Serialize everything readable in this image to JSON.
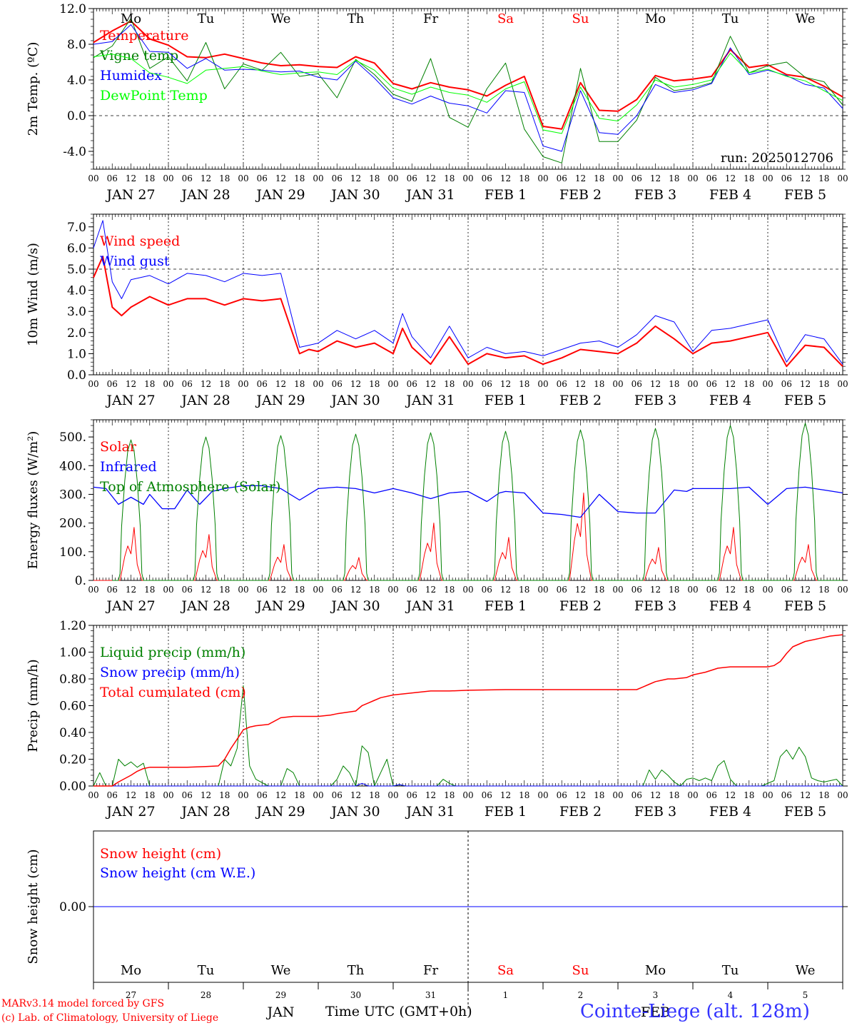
{
  "days": [
    "JAN 27",
    "JAN 28",
    "JAN 29",
    "JAN 30",
    "JAN 31",
    "FEB  1",
    "FEB  2",
    "FEB  3",
    "FEB  4",
    "FEB  5"
  ],
  "weekdays": [
    "Mo",
    "Tu",
    "We",
    "Th",
    "Fr",
    "Sa",
    "Su",
    "Mo",
    "Tu",
    "We"
  ],
  "weekday_colors": [
    "#000000",
    "#000000",
    "#000000",
    "#000000",
    "#000000",
    "#ff0000",
    "#ff0000",
    "#000000",
    "#000000",
    "#000000"
  ],
  "hour_labels": [
    "00",
    "06",
    "12",
    "18"
  ],
  "end_hour_label": "00",
  "bottom_day_numbers": [
    "27",
    "28",
    "29",
    "30",
    "31",
    "1",
    "2",
    "3",
    "4",
    "5"
  ],
  "x_month_left": "JAN",
  "x_month_right": "FEB",
  "x_axis_title": "Time UTC (GMT+0h)",
  "footer": {
    "model": "MARv3.14 model forced by GFS",
    "copyright": "(c) Lab. of Climatology, University of Liege",
    "station": "Cointe-Liege (alt. 128m)"
  },
  "chart_data": [
    {
      "type": "line",
      "id": "temp",
      "ylabel": "2m Temp. (ºC)",
      "ylim": [
        -6,
        12
      ],
      "yticks": [
        -4,
        0,
        4,
        8,
        12
      ],
      "ytick_labels": [
        "-4.0",
        "0.0",
        "4.0",
        "8.0",
        "12.0"
      ],
      "ref_line": 0,
      "annotation": "run: 2025012706",
      "x_hours": [
        0,
        6,
        12,
        18,
        24,
        30,
        36,
        42,
        48,
        54,
        60,
        66,
        72,
        78,
        84,
        90,
        96,
        102,
        108,
        114,
        120,
        126,
        132,
        138,
        144,
        150,
        156,
        162,
        168,
        174,
        180,
        186,
        192,
        198,
        204,
        210,
        216,
        222,
        228,
        234,
        240
      ],
      "series": [
        {
          "name": "Temperature",
          "color": "#ff0000",
          "width": 2,
          "values": [
            8.2,
            9.5,
            10.6,
            8.6,
            7.9,
            6.6,
            6.5,
            6.9,
            6.4,
            5.9,
            5.6,
            5.7,
            5.5,
            5.4,
            6.6,
            5.9,
            3.6,
            3.0,
            3.7,
            3.2,
            2.9,
            2.2,
            3.4,
            4.4,
            -1.2,
            -1.5,
            3.7,
            0.6,
            0.5,
            1.8,
            4.5,
            3.9,
            4.1,
            4.4,
            7.4,
            5.4,
            5.7,
            4.6,
            4.3,
            3.3,
            2.1
          ]
        },
        {
          "name": "Vigne temp",
          "color": "#008000",
          "width": 1,
          "values": [
            6.5,
            7.8,
            10.9,
            5.3,
            6.6,
            3.9,
            8.2,
            3.0,
            5.8,
            5.1,
            7.1,
            4.4,
            4.7,
            2.0,
            6.3,
            4.6,
            2.4,
            1.6,
            6.4,
            -0.2,
            -1.3,
            3.0,
            5.9,
            -1.5,
            -4.6,
            -5.3,
            5.3,
            -2.9,
            -2.9,
            -0.5,
            4.3,
            2.8,
            3.1,
            3.7,
            8.9,
            4.8,
            5.6,
            6.0,
            4.3,
            3.8,
            1.2
          ]
        },
        {
          "name": "Humidex",
          "color": "#0000ff",
          "width": 1,
          "values": [
            8.0,
            8.3,
            10.2,
            7.2,
            7.1,
            5.3,
            6.4,
            5.1,
            5.2,
            5.1,
            4.9,
            5.0,
            4.3,
            4.0,
            6.1,
            4.2,
            2.0,
            1.3,
            2.2,
            1.4,
            1.1,
            0.3,
            2.8,
            2.6,
            -3.4,
            -4.0,
            2.8,
            -1.9,
            -2.1,
            0.0,
            3.5,
            2.6,
            2.9,
            3.6,
            7.6,
            4.6,
            5.1,
            4.5,
            3.5,
            3.1,
            0.8
          ]
        },
        {
          "name": "DewPoint Temp",
          "color": "#00ff00",
          "width": 1,
          "values": [
            6.6,
            6.9,
            6.4,
            4.8,
            4.3,
            3.6,
            5.1,
            5.3,
            5.5,
            5.0,
            4.6,
            4.8,
            4.9,
            4.6,
            6.2,
            5.1,
            3.1,
            2.4,
            3.2,
            2.6,
            2.3,
            1.5,
            3.0,
            3.8,
            -1.6,
            -2.0,
            3.2,
            -0.3,
            -0.6,
            1.2,
            4.0,
            3.2,
            3.5,
            4.0,
            7.0,
            4.8,
            5.2,
            4.4,
            3.9,
            2.8,
            1.7
          ]
        }
      ]
    },
    {
      "type": "line",
      "id": "wind",
      "ylabel": "10m Wind (m/s)",
      "ylim": [
        0,
        7.6
      ],
      "yticks": [
        0,
        1,
        2,
        3,
        4,
        5,
        6,
        7
      ],
      "ytick_labels": [
        "0.0",
        "1.0",
        "2.0",
        "3.0",
        "4.0",
        "5.0",
        "6.0",
        "7.0"
      ],
      "ref_line": 5,
      "x_hours": [
        0,
        3,
        6,
        9,
        12,
        18,
        24,
        30,
        36,
        42,
        48,
        54,
        60,
        66,
        69,
        72,
        78,
        84,
        90,
        96,
        99,
        102,
        108,
        114,
        120,
        126,
        132,
        138,
        144,
        150,
        156,
        162,
        168,
        174,
        180,
        186,
        192,
        198,
        204,
        210,
        216,
        222,
        228,
        234,
        240
      ],
      "series": [
        {
          "name": "Wind speed",
          "color": "#ff0000",
          "width": 2,
          "values": [
            4.6,
            5.6,
            3.2,
            2.8,
            3.2,
            3.7,
            3.3,
            3.6,
            3.6,
            3.3,
            3.6,
            3.5,
            3.6,
            1.0,
            1.2,
            1.1,
            1.6,
            1.3,
            1.5,
            1.0,
            2.2,
            1.3,
            0.5,
            1.8,
            0.5,
            1.0,
            0.8,
            0.9,
            0.5,
            0.8,
            1.2,
            1.1,
            1.0,
            1.5,
            2.3,
            1.7,
            1.0,
            1.5,
            1.6,
            1.8,
            2.0,
            0.4,
            1.4,
            1.3,
            0.4
          ]
        },
        {
          "name": "Wind gust",
          "color": "#0000ff",
          "width": 1,
          "values": [
            6.0,
            7.3,
            4.4,
            3.6,
            4.5,
            4.7,
            4.3,
            4.8,
            4.7,
            4.4,
            4.8,
            4.7,
            4.8,
            1.3,
            1.4,
            1.5,
            2.1,
            1.7,
            2.1,
            1.5,
            2.9,
            1.8,
            0.8,
            2.3,
            0.8,
            1.3,
            1.0,
            1.1,
            0.9,
            1.2,
            1.5,
            1.6,
            1.3,
            1.9,
            2.8,
            2.5,
            1.1,
            2.1,
            2.2,
            2.4,
            2.6,
            0.6,
            1.9,
            1.7,
            0.5
          ]
        }
      ]
    },
    {
      "type": "line",
      "id": "flux",
      "ylabel": "Energy fluxes (W/m²)",
      "ylim": [
        0,
        560
      ],
      "yticks": [
        0,
        100,
        200,
        300,
        400,
        500
      ],
      "ytick_labels": [
        "0.",
        "100.",
        "200.",
        "300.",
        "400.",
        "500."
      ],
      "solar_noon_hour": 12,
      "day_length_hours": 8,
      "toa_peak": [
        490,
        500,
        505,
        510,
        515,
        520,
        525,
        530,
        540,
        548
      ],
      "solar_peak": [
        185,
        160,
        125,
        80,
        200,
        150,
        305,
        115,
        185,
        125
      ],
      "series": [
        {
          "name": "Solar",
          "color": "#ff0000",
          "width": 1
        },
        {
          "name": "Infrared",
          "color": "#0000ff",
          "width": 1.3,
          "x_hours": [
            0,
            4,
            8,
            12,
            16,
            18,
            22,
            26,
            30,
            34,
            38,
            42,
            48,
            54,
            60,
            66,
            72,
            78,
            84,
            90,
            96,
            102,
            108,
            114,
            120,
            126,
            130,
            132,
            138,
            144,
            150,
            156,
            162,
            168,
            174,
            180,
            186,
            190,
            192,
            198,
            204,
            210,
            216,
            222,
            228,
            234,
            240
          ],
          "values": [
            325,
            320,
            265,
            290,
            265,
            300,
            250,
            250,
            315,
            265,
            310,
            320,
            330,
            330,
            320,
            280,
            320,
            325,
            320,
            305,
            320,
            305,
            285,
            305,
            310,
            275,
            305,
            310,
            305,
            235,
            230,
            220,
            300,
            240,
            235,
            235,
            315,
            310,
            320,
            320,
            320,
            325,
            265,
            320,
            325,
            315,
            305
          ]
        },
        {
          "name": "Top of Atmosphere (Solar)",
          "color": "#008000",
          "width": 1
        }
      ]
    },
    {
      "type": "line",
      "id": "precip",
      "ylabel": "Precip (mm/h)",
      "ylim": [
        0,
        1.2
      ],
      "yticks": [
        0,
        0.2,
        0.4,
        0.6,
        0.8,
        1.0,
        1.2
      ],
      "ytick_labels": [
        "0.00",
        "0.20",
        "0.40",
        "0.60",
        "0.80",
        "1.00",
        "1.20"
      ],
      "series": [
        {
          "name": "Liquid precip (mm/h)",
          "color": "#008000",
          "width": 1,
          "x_hours": [
            0,
            2,
            4,
            6,
            8,
            10,
            12,
            14,
            16,
            18,
            20,
            24,
            30,
            36,
            40,
            42,
            44,
            46,
            48,
            50,
            52,
            56,
            60,
            62,
            64,
            66,
            68,
            70,
            72,
            76,
            78,
            80,
            82,
            84,
            86,
            88,
            90,
            92,
            94,
            96,
            98,
            100,
            106,
            110,
            112,
            114,
            116,
            120,
            130,
            150,
            160,
            170,
            174,
            176,
            178,
            180,
            182,
            184,
            186,
            188,
            190,
            192,
            194,
            196,
            198,
            200,
            202,
            204,
            206,
            208,
            210,
            214,
            218,
            220,
            222,
            224,
            226,
            228,
            230,
            232,
            234,
            236,
            238,
            240
          ],
          "values": [
            0,
            0.1,
            0,
            0,
            0.2,
            0.15,
            0.18,
            0.14,
            0.17,
            0,
            0,
            0,
            0,
            0,
            0,
            0.2,
            0.15,
            0.28,
            0.75,
            0.15,
            0.05,
            0,
            0,
            0.13,
            0.1,
            0,
            0,
            0,
            0,
            0,
            0.05,
            0.15,
            0.1,
            0,
            0.3,
            0.25,
            0,
            0.1,
            0.2,
            0,
            0.01,
            0,
            0,
            0,
            0.05,
            0.02,
            0,
            0,
            0,
            0,
            0,
            0,
            0,
            0,
            0.12,
            0.05,
            0.12,
            0.08,
            0.03,
            0,
            0.05,
            0.06,
            0.04,
            0.06,
            0.04,
            0.15,
            0.19,
            0.05,
            0,
            0,
            0,
            0,
            0.04,
            0.22,
            0.27,
            0.2,
            0.29,
            0.22,
            0.06,
            0.04,
            0.03,
            0.04,
            0.05,
            0
          ]
        },
        {
          "name": "Snow precip (mm/h)",
          "color": "#0000ff",
          "width": 1,
          "x_hours": [
            0,
            72,
            84,
            86,
            88,
            96,
            98,
            100,
            120,
            240
          ],
          "values": [
            0,
            0,
            0,
            0.02,
            0,
            0,
            0.01,
            0,
            0,
            0
          ]
        },
        {
          "name": "Total cumulated (cm)",
          "color": "#ff0000",
          "width": 1.5,
          "x_hours": [
            0,
            6,
            8,
            12,
            14,
            16,
            18,
            24,
            30,
            36,
            40,
            42,
            44,
            46,
            48,
            50,
            52,
            56,
            60,
            64,
            68,
            72,
            76,
            78,
            84,
            86,
            88,
            90,
            92,
            96,
            100,
            104,
            108,
            114,
            120,
            132,
            144,
            156,
            168,
            174,
            176,
            178,
            180,
            182,
            184,
            186,
            190,
            192,
            196,
            200,
            204,
            208,
            210,
            212,
            214,
            216,
            218,
            220,
            222,
            224,
            228,
            232,
            236,
            240
          ],
          "values": [
            0,
            0,
            0.03,
            0.08,
            0.11,
            0.13,
            0.14,
            0.14,
            0.14,
            0.145,
            0.15,
            0.2,
            0.28,
            0.35,
            0.42,
            0.44,
            0.45,
            0.46,
            0.51,
            0.52,
            0.52,
            0.52,
            0.53,
            0.54,
            0.56,
            0.6,
            0.62,
            0.64,
            0.66,
            0.68,
            0.69,
            0.7,
            0.71,
            0.71,
            0.715,
            0.72,
            0.72,
            0.72,
            0.72,
            0.72,
            0.74,
            0.76,
            0.78,
            0.79,
            0.8,
            0.8,
            0.81,
            0.83,
            0.85,
            0.88,
            0.89,
            0.89,
            0.89,
            0.89,
            0.89,
            0.89,
            0.9,
            0.93,
            0.99,
            1.04,
            1.08,
            1.1,
            1.12,
            1.13
          ]
        }
      ]
    },
    {
      "type": "line",
      "id": "snow",
      "ylabel": "Snow height (cm)",
      "ylim": [
        -1,
        1
      ],
      "yticks": [
        0
      ],
      "ytick_labels": [
        "0.00"
      ],
      "series": [
        {
          "name": "Snow height (cm)",
          "color": "#ff0000",
          "width": 1,
          "x_hours": [
            0,
            240
          ],
          "values": [
            0,
            0
          ]
        },
        {
          "name": "Snow height (cm W.E.)",
          "color": "#0000ff",
          "width": 1,
          "x_hours": [
            0,
            240
          ],
          "values": [
            0,
            0
          ]
        }
      ]
    }
  ]
}
